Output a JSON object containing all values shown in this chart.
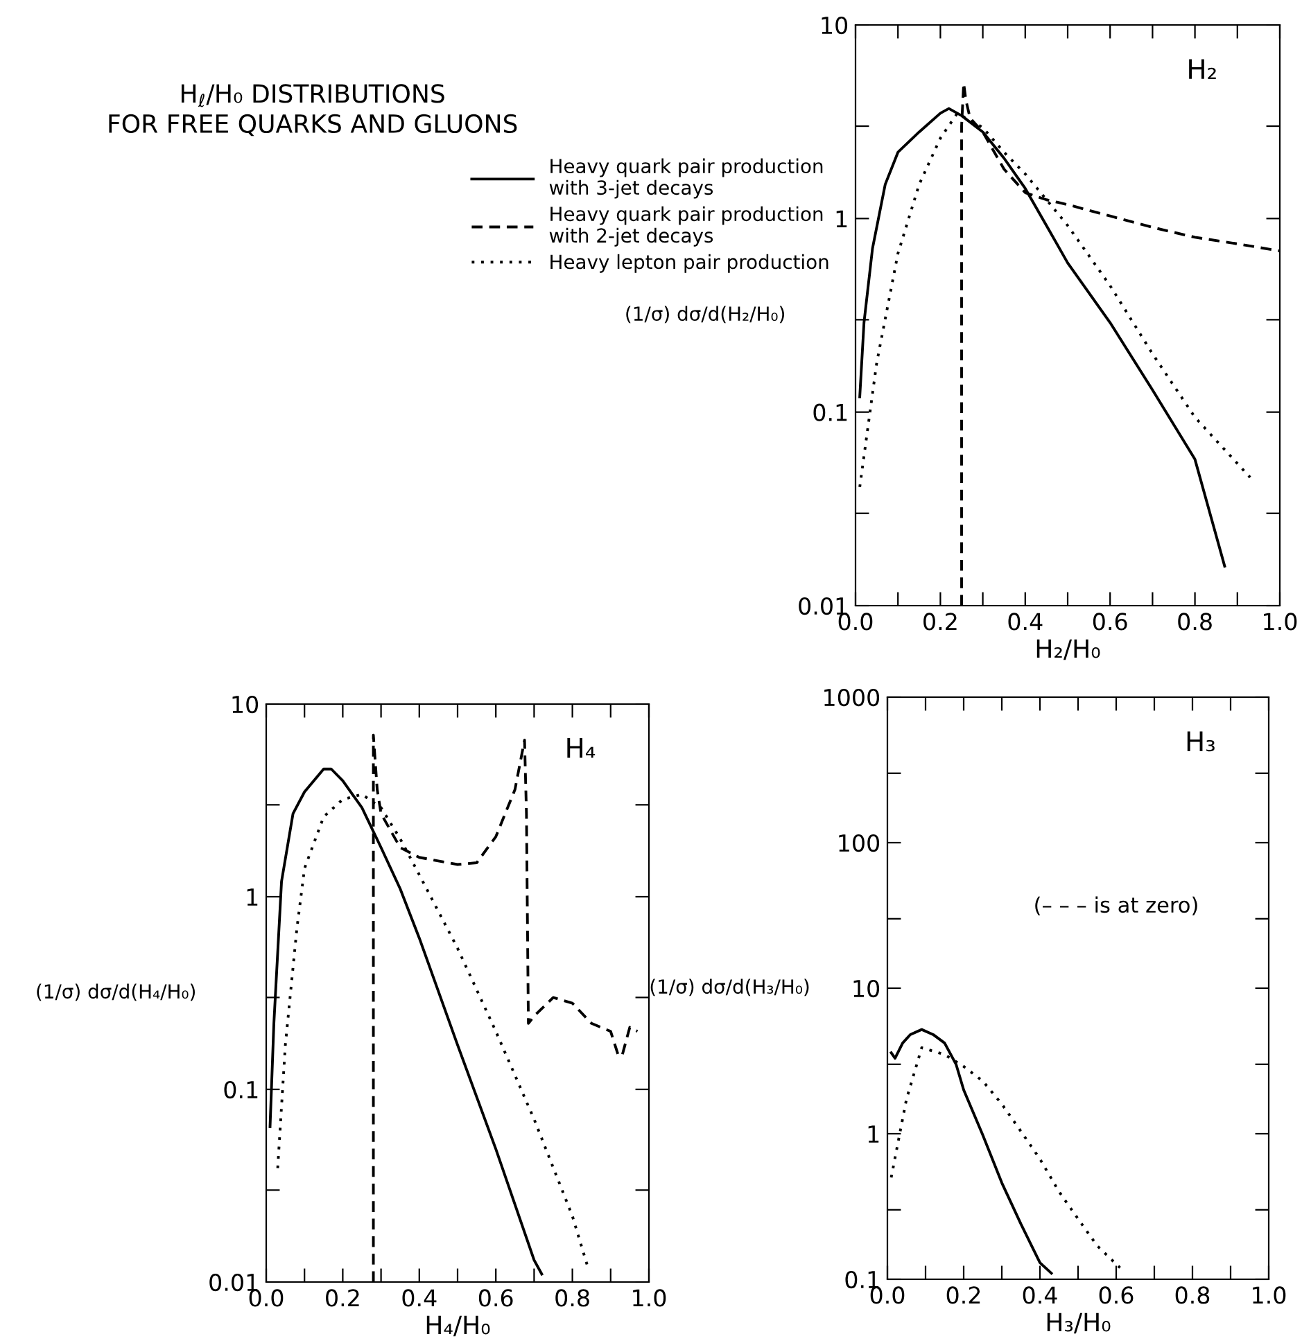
{
  "chart_data": [
    {
      "type": "line",
      "xlabel": "H₂/H₀",
      "ylabel": "(1/σ) dσ/d(H₂/H₀)",
      "annotations": [
        "H₂"
      ],
      "log": "y",
      "legend": "left",
      "xlim": [
        0.0,
        1.0
      ],
      "ylim": [
        0.01,
        10
      ],
      "xticks": [
        {
          "value": 0.0,
          "label": "0.0"
        },
        {
          "value": 0.1,
          "label": null
        },
        {
          "value": 0.2,
          "label": "0.2"
        },
        {
          "value": 0.3,
          "label": null
        },
        {
          "value": 0.4,
          "label": "0.4"
        },
        {
          "value": 0.5,
          "label": null
        },
        {
          "value": 0.6,
          "label": "0.6"
        },
        {
          "value": 0.7,
          "label": null
        },
        {
          "value": 0.8,
          "label": "0.8"
        },
        {
          "value": 0.9,
          "label": null
        },
        {
          "value": 1.0,
          "label": "1.0"
        }
      ],
      "yticks": [
        0.01,
        {
          "value": 0.03,
          "label": null
        },
        0.1,
        {
          "value": 0.3,
          "label": null
        },
        1,
        {
          "value": 3,
          "label": null
        },
        10
      ],
      "series": [
        {
          "name": "Heavy quark pair production\nwith 3-jet decays",
          "color": "#000000",
          "line_style": "solid",
          "x": [
            0.01,
            0.02,
            0.04,
            0.07,
            0.1,
            0.15,
            0.2,
            0.22,
            0.25,
            0.3,
            0.35,
            0.4,
            0.45,
            0.5,
            0.6,
            0.7,
            0.8,
            0.87
          ],
          "values": [
            0.12,
            0.29,
            0.7,
            1.5,
            2.2,
            2.8,
            3.5,
            3.7,
            3.4,
            2.8,
            2.05,
            1.43,
            0.92,
            0.59,
            0.29,
            0.13,
            0.057,
            0.016
          ]
        },
        {
          "name": "Heavy quark pair production\nwith 2-jet decays",
          "color": "#000000",
          "line_style": "dashed",
          "x": [
            0.25,
            0.25,
            0.255,
            0.26,
            0.27,
            0.3,
            0.35,
            0.4,
            0.45,
            0.5,
            0.6,
            0.7,
            0.8,
            0.9,
            1.0
          ],
          "values": [
            0.01,
            3.0,
            5.0,
            4.1,
            3.3,
            2.8,
            1.8,
            1.36,
            1.25,
            1.18,
            1.03,
            0.9,
            0.8,
            0.74,
            0.68
          ]
        },
        {
          "name": "Heavy lepton pair production",
          "color": "#000000",
          "line_style": "dotted",
          "x": [
            0.01,
            0.05,
            0.1,
            0.15,
            0.2,
            0.24,
            0.3,
            0.35,
            0.4,
            0.5,
            0.6,
            0.7,
            0.8,
            0.93
          ],
          "values": [
            0.041,
            0.18,
            0.66,
            1.5,
            2.6,
            3.5,
            2.95,
            2.2,
            1.7,
            0.92,
            0.45,
            0.2,
            0.094,
            0.046
          ]
        }
      ]
    },
    {
      "type": "line",
      "title": "H$_{ℓ}$/H₀ DISTRIBUTIONS\nFOR FREE QUARKS AND GLUONS",
      "xlabel": "H₄/H₀",
      "ylabel": "(1/σ) dσ/d(H₄/H₀)",
      "annotations": [
        "H₄"
      ],
      "log": "y",
      "xlim": [
        0.0,
        1.0
      ],
      "ylim": [
        0.01,
        10
      ],
      "xticks": [
        {
          "value": 0.0,
          "label": "0.0"
        },
        {
          "value": 0.1,
          "label": null
        },
        {
          "value": 0.2,
          "label": "0.2"
        },
        {
          "value": 0.3,
          "label": null
        },
        {
          "value": 0.4,
          "label": "0.4"
        },
        {
          "value": 0.5,
          "label": null
        },
        {
          "value": 0.6,
          "label": "0.6"
        },
        {
          "value": 0.7,
          "label": null
        },
        {
          "value": 0.8,
          "label": "0.8"
        },
        {
          "value": 0.9,
          "label": null
        },
        {
          "value": 1.0,
          "label": "1.0"
        }
      ],
      "yticks": [
        0.01,
        {
          "value": 0.03,
          "label": null
        },
        0.1,
        {
          "value": 0.3,
          "label": null
        },
        1,
        {
          "value": 3,
          "label": null
        },
        10
      ],
      "series": [
        {
          "color": "#000000",
          "line_style": "solid",
          "x": [
            0.01,
            0.02,
            0.04,
            0.07,
            0.1,
            0.15,
            0.17,
            0.2,
            0.25,
            0.3,
            0.35,
            0.4,
            0.5,
            0.6,
            0.7,
            0.72
          ],
          "values": [
            0.064,
            0.22,
            1.2,
            2.7,
            3.5,
            4.6,
            4.6,
            4.0,
            2.9,
            1.8,
            1.1,
            0.61,
            0.17,
            0.049,
            0.013,
            0.011
          ]
        },
        {
          "color": "#000000",
          "line_style": "dashed",
          "x": [
            0.28,
            0.28,
            0.29,
            0.3,
            0.35,
            0.4,
            0.5,
            0.55,
            0.6,
            0.65,
            0.675,
            0.68,
            0.685,
            0.7,
            0.75,
            0.8,
            0.85,
            0.9,
            0.92,
            0.93,
            0.95,
            0.97
          ],
          "values": [
            0.01,
            6.9,
            3.6,
            2.7,
            1.8,
            1.6,
            1.47,
            1.5,
            2.05,
            3.6,
            6.5,
            2.7,
            0.22,
            0.24,
            0.3,
            0.28,
            0.22,
            0.2,
            0.15,
            0.15,
            0.21,
            0.2
          ]
        },
        {
          "color": "#000000",
          "line_style": "dotted",
          "x": [
            0.03,
            0.05,
            0.08,
            0.1,
            0.15,
            0.2,
            0.25,
            0.3,
            0.35,
            0.4,
            0.5,
            0.6,
            0.7,
            0.8,
            0.84
          ],
          "values": [
            0.039,
            0.17,
            0.68,
            1.4,
            2.6,
            3.2,
            3.4,
            2.9,
            2.0,
            1.3,
            0.54,
            0.2,
            0.07,
            0.022,
            0.012
          ]
        }
      ]
    },
    {
      "type": "line",
      "xlabel": "H₃/H₀",
      "ylabel": "(1/σ) dσ/d(H₃/H₀)",
      "annotations": [
        "H₃",
        "(– – – is at zero)"
      ],
      "log": "y",
      "xlim": [
        0.0,
        1.0
      ],
      "ylim": [
        0.1,
        1000
      ],
      "xticks": [
        {
          "value": 0.0,
          "label": "0.0"
        },
        {
          "value": 0.1,
          "label": null
        },
        {
          "value": 0.2,
          "label": "0.2"
        },
        {
          "value": 0.3,
          "label": null
        },
        {
          "value": 0.4,
          "label": "0.4"
        },
        {
          "value": 0.5,
          "label": null
        },
        {
          "value": 0.6,
          "label": "0.6"
        },
        {
          "value": 0.7,
          "label": null
        },
        {
          "value": 0.8,
          "label": "0.8"
        },
        {
          "value": 0.9,
          "label": null
        },
        {
          "value": 1.0,
          "label": "1.0"
        }
      ],
      "yticks": [
        0.1,
        {
          "value": 0.3,
          "label": null
        },
        1,
        {
          "value": 3,
          "label": null
        },
        10,
        {
          "value": 30,
          "label": null
        },
        100,
        {
          "value": 300,
          "label": null
        },
        1000
      ],
      "series": [
        {
          "color": "#000000",
          "line_style": "solid",
          "x": [
            0.01,
            0.02,
            0.04,
            0.06,
            0.09,
            0.12,
            0.15,
            0.18,
            0.2,
            0.25,
            0.3,
            0.35,
            0.4,
            0.43
          ],
          "values": [
            3.6,
            3.3,
            4.2,
            4.8,
            5.2,
            4.8,
            4.2,
            3.0,
            2.0,
            0.98,
            0.46,
            0.24,
            0.13,
            0.11
          ]
        },
        {
          "color": "#000000",
          "line_style": "dotted",
          "x": [
            0.01,
            0.05,
            0.09,
            0.15,
            0.2,
            0.25,
            0.3,
            0.35,
            0.4,
            0.45,
            0.5,
            0.55,
            0.61
          ],
          "values": [
            0.5,
            1.73,
            3.9,
            3.5,
            2.9,
            2.3,
            1.6,
            1.04,
            0.67,
            0.4,
            0.26,
            0.17,
            0.12
          ]
        }
      ]
    }
  ]
}
